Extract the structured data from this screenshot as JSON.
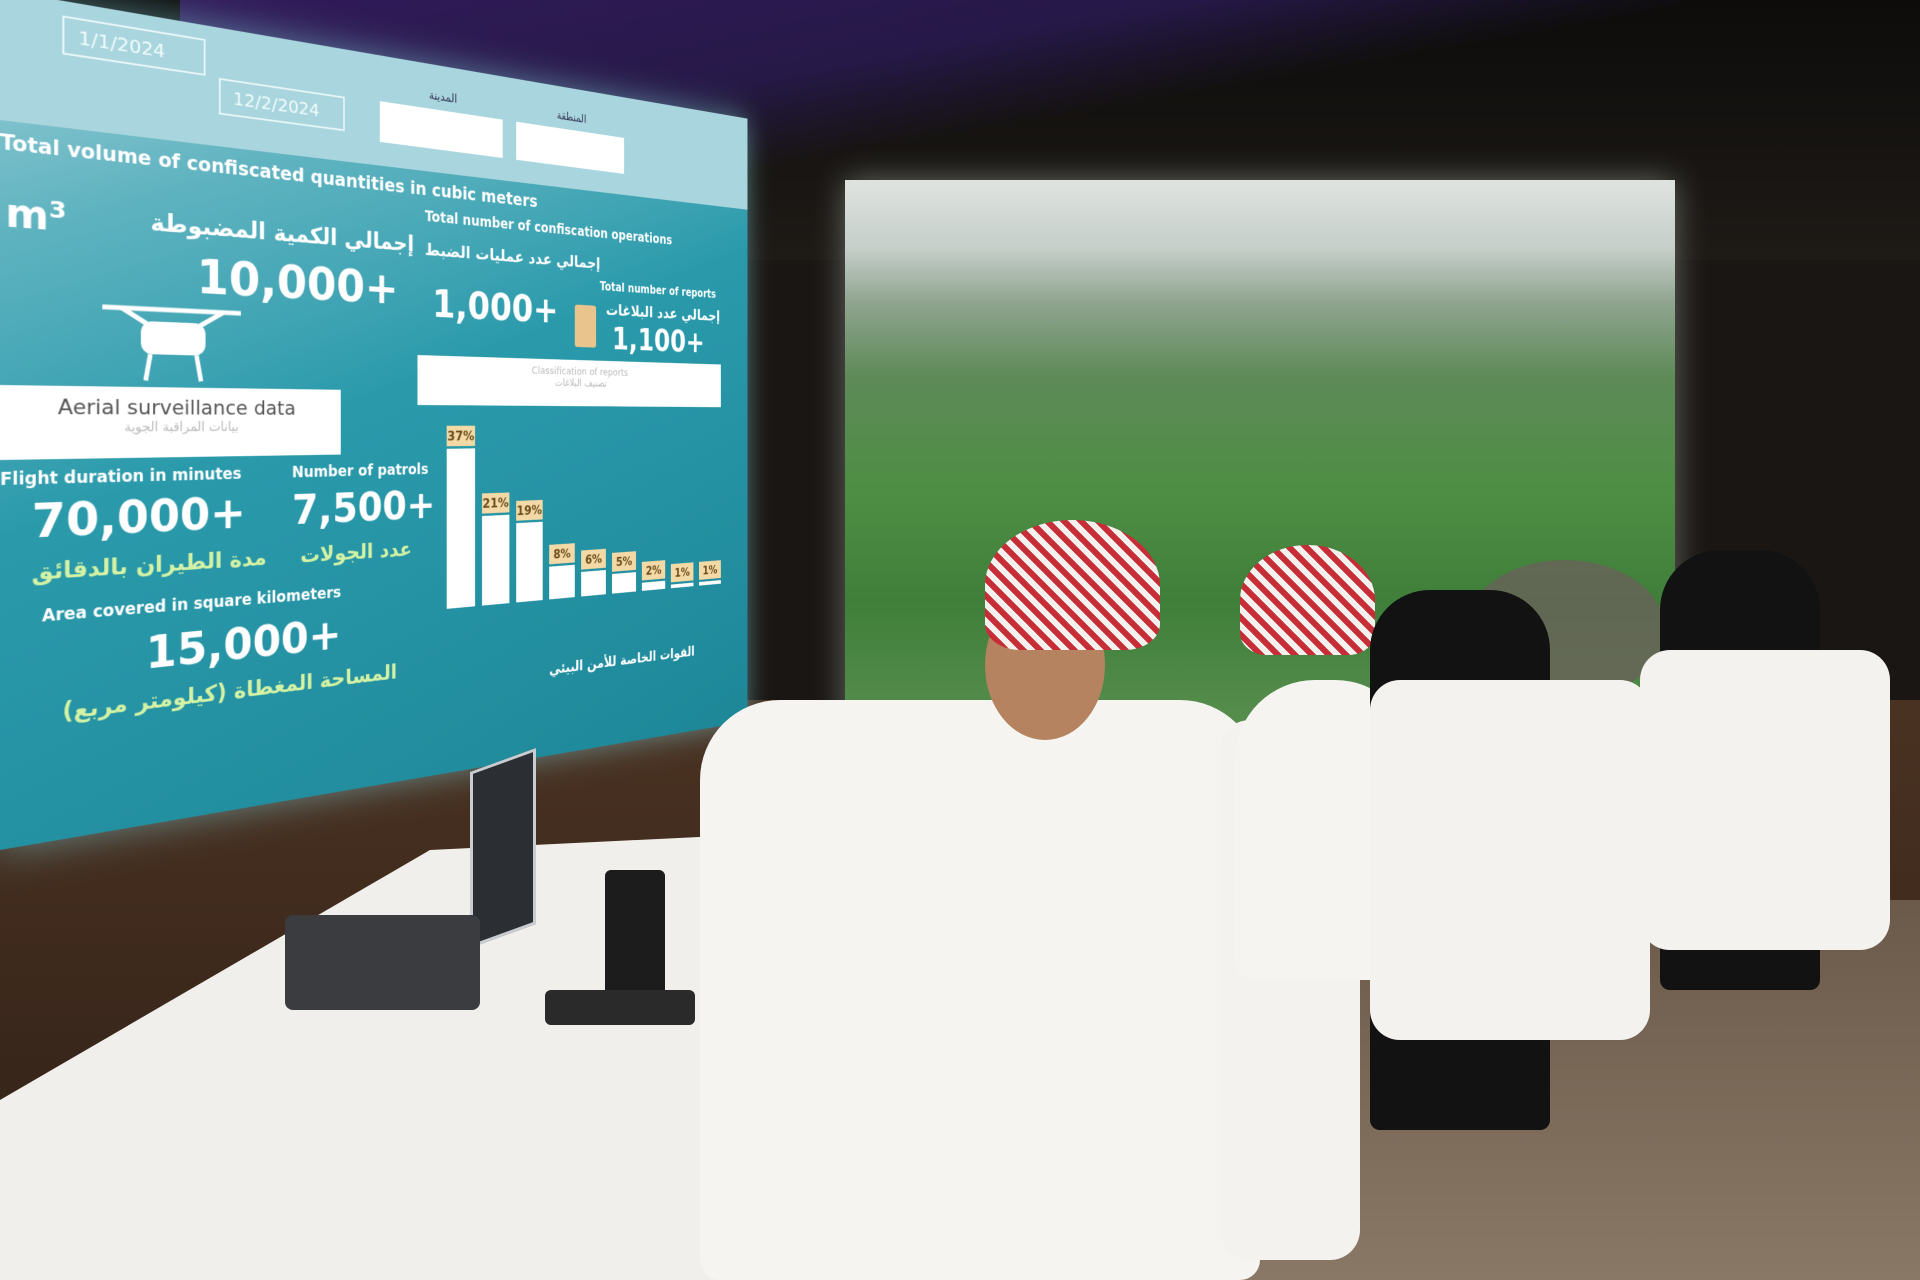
{
  "dashboard": {
    "dates": {
      "start": "1/1/2024",
      "end": "12/2/2024"
    },
    "filters": [
      {
        "label": "المدينة"
      },
      {
        "label": "المنطقة"
      }
    ],
    "confiscated": {
      "title": "Total volume of confiscated quantities in cubic meters",
      "unit": "m³",
      "ar_label": "إجمالي الكمية المضبوطة",
      "value": "10,000+"
    },
    "operations": {
      "title": "Total number of confiscation operations",
      "ar_label": "إجمالي عدد عمليات الضبط",
      "value": "1,000+"
    },
    "reports": {
      "title": "Total number of reports",
      "ar_label": "إجمالي عدد البلاغات",
      "value": "1,100+"
    },
    "classification_card": {
      "title": "Classification of reports",
      "ar_title": "تصنيف البلاغات"
    },
    "aerial": {
      "title": "Aerial surveillance data",
      "ar_title": "بيانات المراقبة الجوية"
    },
    "flight": {
      "title": "Flight duration in minutes",
      "value": "70,000+",
      "ar_label": "مدة الطيران بالدقائق"
    },
    "patrols": {
      "title": "Number of patrols",
      "value": "7,500+",
      "ar_label": "عدد الجولات"
    },
    "area": {
      "title": "Area covered in square kilometers",
      "value": "15,000+",
      "ar_label": "المساحة المغطاة (كيلومتر مربع)"
    },
    "footer_ar": "القوات الخاصة للأمن البيئي",
    "colors": {
      "panel": "#1d8798",
      "accent_label": "#f3d9a6",
      "arabic_highlight": "#d3f2a5"
    }
  },
  "chart_data": {
    "type": "bar",
    "title": "Classification of reports",
    "values": [
      37,
      21,
      19,
      8,
      6,
      5,
      2,
      1,
      1
    ],
    "labels": [
      "37%",
      "21%",
      "19%",
      "8%",
      "6%",
      "5%",
      "2%",
      "1%",
      "1%"
    ],
    "unit": "%"
  }
}
